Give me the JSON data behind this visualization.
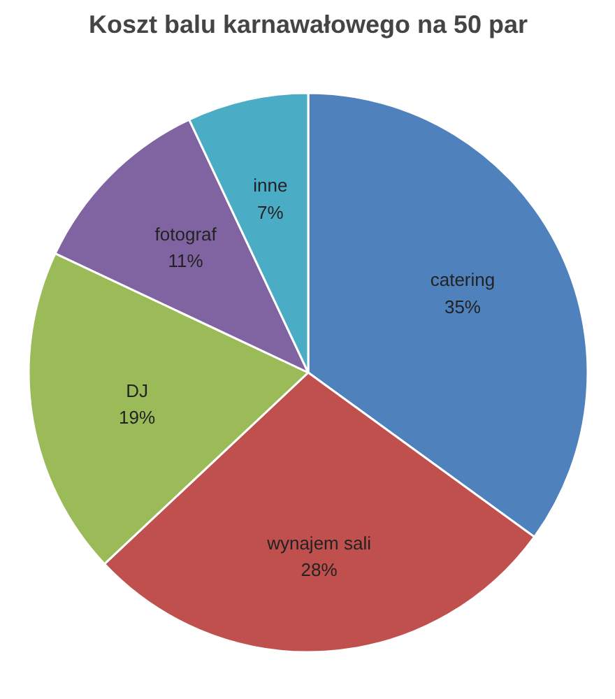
{
  "chart_data": {
    "type": "pie",
    "title": "Koszt balu karnawałowego na 50 par",
    "categories": [
      "catering",
      "wynajem sali",
      "DJ",
      "fotograf",
      "inne"
    ],
    "values": [
      35,
      28,
      19,
      11,
      7
    ],
    "colors": [
      "#4f81bd",
      "#c0504d",
      "#9bbb59",
      "#8064a2",
      "#4bacc6"
    ],
    "value_labels": [
      "35%",
      "28%",
      "19%",
      "11%",
      "7%"
    ],
    "legend": false
  }
}
